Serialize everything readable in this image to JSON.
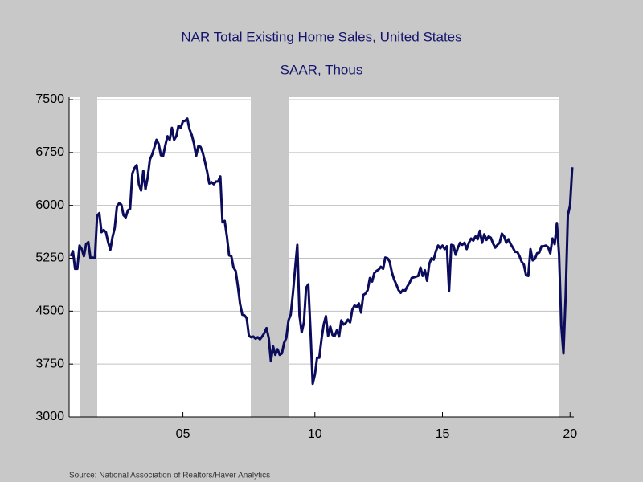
{
  "chart_data": {
    "type": "line",
    "title": "NAR Total Existing Home Sales, United States",
    "subtitle": "SAAR, Thous",
    "source": "Source:  National Association of Realtors/Haver Analytics",
    "categories": [
      null,
      null,
      null,
      null,
      null,
      null,
      null,
      null,
      null,
      null,
      null,
      null,
      null,
      null,
      null,
      null,
      null,
      null,
      null,
      null,
      null,
      null,
      null,
      null,
      null,
      null,
      null,
      null,
      null,
      null,
      null,
      null,
      null,
      null,
      null,
      null,
      null,
      null,
      null,
      null,
      null,
      null,
      null,
      null,
      null,
      null,
      null,
      null,
      null,
      null,
      null,
      "05",
      null,
      null,
      null,
      null,
      null,
      null,
      null,
      null,
      null,
      null,
      null,
      null,
      null,
      null,
      null,
      null,
      null,
      null,
      null,
      null,
      null,
      null,
      null,
      null,
      null,
      null,
      null,
      null,
      null,
      null,
      null,
      null,
      null,
      null,
      null,
      null,
      null,
      null,
      null,
      null,
      null,
      null,
      null,
      null,
      null,
      null,
      null,
      null,
      null,
      null,
      null,
      null,
      null,
      null,
      null,
      null,
      null,
      null,
      null,
      "10",
      null,
      null,
      null,
      null,
      null,
      null,
      null,
      null,
      null,
      null,
      null,
      null,
      null,
      null,
      null,
      null,
      null,
      null,
      null,
      null,
      null,
      null,
      null,
      null,
      null,
      null,
      null,
      null,
      null,
      null,
      null,
      null,
      null,
      null,
      null,
      null,
      null,
      null,
      null,
      null,
      null,
      null,
      null,
      null,
      null,
      null,
      null,
      null,
      null,
      null,
      null,
      null,
      null,
      null,
      null,
      null,
      null,
      "15",
      null,
      null,
      null,
      null,
      null,
      null,
      null,
      null,
      null,
      null,
      null,
      null,
      null,
      null,
      null,
      null,
      null,
      null,
      null,
      null,
      null,
      null,
      null,
      null,
      null,
      null,
      null,
      null,
      null,
      null,
      null,
      null,
      null,
      null,
      null,
      null,
      null,
      null,
      null,
      null,
      null,
      null,
      null,
      null,
      null,
      null,
      null,
      null,
      null,
      null,
      null,
      null,
      null,
      null,
      null,
      null,
      null,
      "20",
      null
    ],
    "series": [
      {
        "name": "Total Existing Home Sales",
        "color": "#0c0c5c",
        "values": [
          5280,
          5350,
          5100,
          5100,
          5430,
          5380,
          5280,
          5450,
          5480,
          5250,
          5260,
          5250,
          5850,
          5890,
          5620,
          5650,
          5620,
          5480,
          5370,
          5550,
          5680,
          5980,
          6030,
          6010,
          5860,
          5830,
          5930,
          5950,
          6450,
          6530,
          6570,
          6300,
          6210,
          6490,
          6230,
          6400,
          6650,
          6720,
          6820,
          6930,
          6870,
          6710,
          6700,
          6850,
          6980,
          6930,
          7100,
          6930,
          6980,
          7130,
          7100,
          7190,
          7200,
          7230,
          7080,
          7000,
          6880,
          6700,
          6840,
          6830,
          6750,
          6620,
          6480,
          6310,
          6330,
          6300,
          6340,
          6340,
          6410,
          5760,
          5780,
          5560,
          5290,
          5280,
          5120,
          5070,
          4850,
          4600,
          4450,
          4440,
          4400,
          4150,
          4130,
          4140,
          4110,
          4130,
          4100,
          4140,
          4190,
          4260,
          4120,
          3790,
          4000,
          3880,
          3960,
          3880,
          3900,
          4050,
          4120,
          4370,
          4450,
          4750,
          5100,
          5440,
          4440,
          4200,
          4340,
          4830,
          4880,
          4220,
          3470,
          3600,
          3840,
          3840,
          4100,
          4310,
          4430,
          4150,
          4280,
          4160,
          4150,
          4230,
          4140,
          4370,
          4310,
          4330,
          4380,
          4340,
          4520,
          4580,
          4560,
          4610,
          4480,
          4730,
          4750,
          4800,
          4970,
          4920,
          5040,
          5070,
          5090,
          5130,
          5100,
          5260,
          5250,
          5200,
          5050,
          4950,
          4880,
          4800,
          4760,
          4800,
          4790,
          4850,
          4900,
          4970,
          4980,
          4990,
          5000,
          5120,
          5000,
          5080,
          4930,
          5170,
          5250,
          5230,
          5350,
          5430,
          5390,
          5430,
          5380,
          5420,
          4790,
          5440,
          5430,
          5300,
          5400,
          5470,
          5440,
          5470,
          5380,
          5470,
          5530,
          5500,
          5560,
          5520,
          5640,
          5470,
          5590,
          5510,
          5560,
          5540,
          5460,
          5400,
          5440,
          5470,
          5600,
          5560,
          5470,
          5520,
          5450,
          5400,
          5340,
          5340,
          5280,
          5200,
          5160,
          5010,
          5000,
          5380,
          5220,
          5240,
          5320,
          5330,
          5420,
          5420,
          5430,
          5410,
          5320,
          5530,
          5450,
          5750,
          5300,
          4300,
          3900,
          4720,
          5860,
          6000,
          6540
        ]
      }
    ],
    "ylim": [
      3000,
      7500
    ],
    "yticks": [
      3000,
      3750,
      4500,
      5250,
      6000,
      6750,
      7500
    ],
    "grid": true
  }
}
